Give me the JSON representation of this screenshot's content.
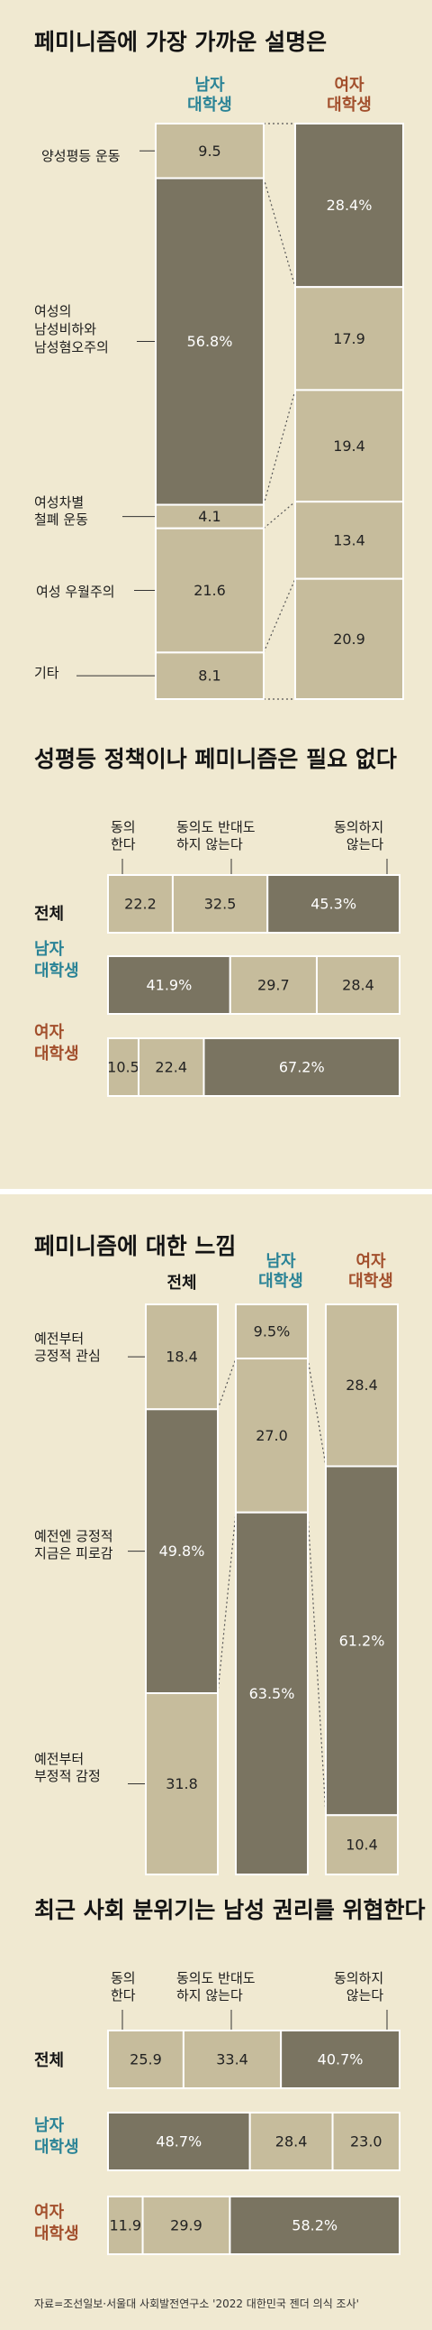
{
  "colors": {
    "background": "#f0e9d1",
    "light_segment": "#c6bc9c",
    "dark_segment": "#7a7461",
    "male_label": "#2a8396",
    "female_label": "#a24f2c"
  },
  "chart_data": [
    {
      "type": "bar",
      "title": "페미니즘에 가장 가까운 설명은",
      "stacked": true,
      "normalized_to_100": true,
      "categories": [
        "남자 대학생",
        "여자 대학생"
      ],
      "series": [
        {
          "name": "양성평등 운동",
          "values": [
            9.5,
            28.4
          ]
        },
        {
          "name": "여성의 남성비하와 남성혐오주의",
          "values": [
            56.8,
            17.9
          ]
        },
        {
          "name": "여성차별 철폐 운동",
          "values": [
            4.1,
            19.4
          ]
        },
        {
          "name": "여성 우월주의",
          "values": [
            21.6,
            13.4
          ]
        },
        {
          "name": "기타",
          "values": [
            8.1,
            20.9
          ]
        }
      ]
    },
    {
      "type": "bar",
      "title": "성평등 정책이나 페미니즘은 필요 없다",
      "orientation": "horizontal",
      "stacked": true,
      "categories": [
        "전체",
        "남자 대학생",
        "여자 대학생"
      ],
      "series": [
        {
          "name": "동의한다",
          "values": [
            22.2,
            41.9,
            10.5
          ]
        },
        {
          "name": "동의도 반대도 하지 않는다",
          "values": [
            32.5,
            29.7,
            22.4
          ]
        },
        {
          "name": "동의하지 않는다",
          "values": [
            45.3,
            28.4,
            67.2
          ]
        }
      ]
    },
    {
      "type": "bar",
      "title": "페미니즘에 대한 느낌",
      "stacked": true,
      "categories": [
        "전체",
        "남자 대학생",
        "여자 대학생"
      ],
      "series": [
        {
          "name": "예전부터 긍정적 관심",
          "values": [
            18.4,
            9.5,
            28.4
          ]
        },
        {
          "name": "예전엔 긍정적 지금은 피로감",
          "values": [
            49.8,
            27.0,
            61.2
          ]
        },
        {
          "name": "예전부터 부정적 감정",
          "values": [
            31.8,
            63.5,
            10.4
          ]
        }
      ]
    },
    {
      "type": "bar",
      "title": "최근 사회 분위기는 남성 권리를 위협한다",
      "orientation": "horizontal",
      "stacked": true,
      "categories": [
        "전체",
        "남자 대학생",
        "여자 대학생"
      ],
      "series": [
        {
          "name": "동의한다",
          "values": [
            25.9,
            48.7,
            11.9
          ]
        },
        {
          "name": "동의도 반대도 하지 않는다",
          "values": [
            33.4,
            28.4,
            29.9
          ]
        },
        {
          "name": "동의하지 않는다",
          "values": [
            40.7,
            23.0,
            58.2
          ]
        }
      ]
    }
  ],
  "texts": {
    "c1_head_m": "남자\n대학생",
    "c1_head_f": "여자\n대학생",
    "c1_labels": [
      "양성평등 운동",
      "여성의\n남성비하와\n남성혐오주의",
      "여성차별\n철폐 운동",
      "여성 우월주의",
      "기타"
    ],
    "c1_m_vals": [
      "9.5",
      "56.8%",
      "4.1",
      "21.6",
      "8.1"
    ],
    "c1_f_vals": [
      "28.4%",
      "17.9",
      "19.4",
      "13.4",
      "20.9"
    ],
    "c2_title": "성평등 정책이나 페미니즘은\n필요 없다",
    "c2_heads": [
      "동의\n한다",
      "동의도 반대도\n하지 않는다",
      "동의하지\n않는다"
    ],
    "row_labels": [
      "전체",
      "남자\n대학생",
      "여자\n대학생"
    ],
    "c2_vals": [
      [
        "22.2",
        "32.5",
        "45.3%"
      ],
      [
        "41.9%",
        "29.7",
        "28.4"
      ],
      [
        "10.5",
        "22.4",
        "67.2%"
      ]
    ],
    "c3_heads": [
      "전체",
      "남자\n대학생",
      "여자\n대학생"
    ],
    "c3_labels": [
      "예전부터\n긍정적 관심",
      "예전엔 긍정적\n지금은 피로감",
      "예전부터\n부정적 감정"
    ],
    "c3_vals": [
      [
        "18.4",
        "49.8%",
        "31.8"
      ],
      [
        "9.5%",
        "27.0",
        "63.5%"
      ],
      [
        "28.4",
        "61.2%",
        "10.4"
      ]
    ],
    "c4_title": "최근 사회 분위기는 남성 권리를\n위협한다",
    "c4_vals": [
      [
        "25.9",
        "33.4",
        "40.7%"
      ],
      [
        "48.7%",
        "28.4",
        "23.0"
      ],
      [
        "11.9",
        "29.9",
        "58.2%"
      ]
    ],
    "source": "자료=조선일보·서울대 사회발전연구소 '2022 대한민국 젠더 의식 조사'"
  }
}
